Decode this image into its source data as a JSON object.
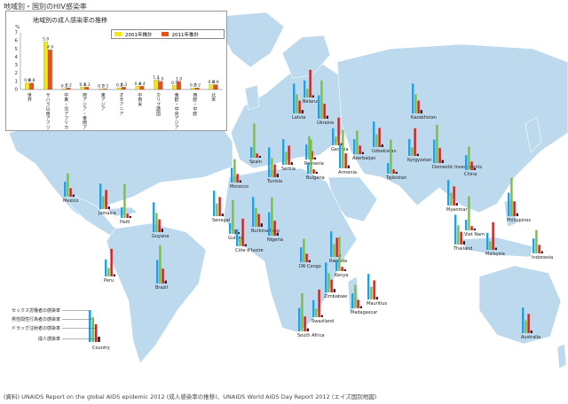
{
  "page_title": "地域別・国別のHIV感染率",
  "inset": {
    "title": "地域別の成人感染率の推移",
    "legend": [
      {
        "label": "2001年推計",
        "color": "#f2e818"
      },
      {
        "label": "2011年推計",
        "color": "#e8501c"
      }
    ],
    "y_ticks": [
      "0",
      "1",
      "2",
      "3",
      "4",
      "5",
      "6",
      "7"
    ],
    "y_unit": "%"
  },
  "chart_data": {
    "type": "bar",
    "title": "地域別の成人感染率の推移",
    "ylim": [
      0,
      7
    ],
    "categories": [
      "世界",
      "サハラ以南アフリカ",
      "中東・北アフリカ",
      "南アジア・東南アジア",
      "東アジア",
      "オセアニア",
      "中南米",
      "カリブ諸国",
      "東欧・中央アジア",
      "西欧・中欧",
      "北米"
    ],
    "series": [
      {
        "name": "2001年推計",
        "values": [
          0.8,
          5.9,
          0.1,
          0.3,
          0.1,
          0.2,
          0.4,
          1.2,
          0.5,
          0.2,
          0.6
        ]
      },
      {
        "name": "2011年推計",
        "values": [
          0.8,
          4.9,
          0.2,
          0.3,
          0.1,
          0.3,
          0.4,
          1.0,
          1.0,
          0.2,
          0.6
        ]
      }
    ]
  },
  "legend_key": {
    "items": [
      "セックス労働者の感染率",
      "男性間性行為者の感染率",
      "ドラッグ注射者の感染率",
      "成人感染率"
    ],
    "country_label": "Country",
    "colors": [
      "#22a0e0",
      "#78c040",
      "#d02020",
      "#222222"
    ]
  },
  "countries": [
    {
      "name": "Mexico"
    },
    {
      "name": "Jamaica"
    },
    {
      "name": "Haiti"
    },
    {
      "name": "Guyana"
    },
    {
      "name": "Peru"
    },
    {
      "name": "Brazil"
    },
    {
      "name": "Morocco"
    },
    {
      "name": "Senegal"
    },
    {
      "name": "Guinea"
    },
    {
      "name": "Burkina Faso"
    },
    {
      "name": "Côte d'Ivoire"
    },
    {
      "name": "Nigeria"
    },
    {
      "name": "DR Congo"
    },
    {
      "name": "Rwanda"
    },
    {
      "name": "Kenya"
    },
    {
      "name": "Zimbabwe"
    },
    {
      "name": "Swaziland"
    },
    {
      "name": "South Africa"
    },
    {
      "name": "Madagascar"
    },
    {
      "name": "Mauritius"
    },
    {
      "name": "Spain"
    },
    {
      "name": "Latvia"
    },
    {
      "name": "Belarus"
    },
    {
      "name": "Ukraine"
    },
    {
      "name": "Romania"
    },
    {
      "name": "Serbia"
    },
    {
      "name": "Bulgaria"
    },
    {
      "name": "Tunisia"
    },
    {
      "name": "Georgia"
    },
    {
      "name": "Armenia"
    },
    {
      "name": "Azerbaijan"
    },
    {
      "name": "Uzbekistan"
    },
    {
      "name": "Tajikistan"
    },
    {
      "name": "Kazakhstan"
    },
    {
      "name": "Kyrgyzstan"
    },
    {
      "name": "Domestic Investments"
    },
    {
      "name": "China"
    },
    {
      "name": "Myanmar"
    },
    {
      "name": "Viet Nam"
    },
    {
      "name": "Thailand"
    },
    {
      "name": "Malaysia"
    },
    {
      "name": "Philippines"
    },
    {
      "name": "Indonesia"
    },
    {
      "name": "Australia"
    }
  ],
  "footer": "(資料) UNAIDS Report on the global AIDS epidemic 2012 (成人感染率の推移)、UNAIDS World AIDS Day Report 2012 (エイズ国別地図)"
}
